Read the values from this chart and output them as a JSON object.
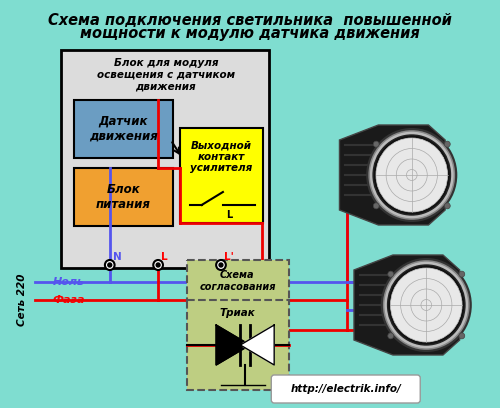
{
  "title_line1": "Схема подключения светильника  повышенной",
  "title_line2": "мощности к модулю датчика движения",
  "bg_color": "#7FDDD0",
  "main_box_color": "#DCDCDC",
  "sensor_box_color": "#6B9DC2",
  "power_box_color": "#F0A030",
  "output_box_color": "#FFFF00",
  "matching_box_color": "#BECE82",
  "url": "http://electrik.info/",
  "wire_blue": "#5555EE",
  "wire_red": "#EE0000"
}
